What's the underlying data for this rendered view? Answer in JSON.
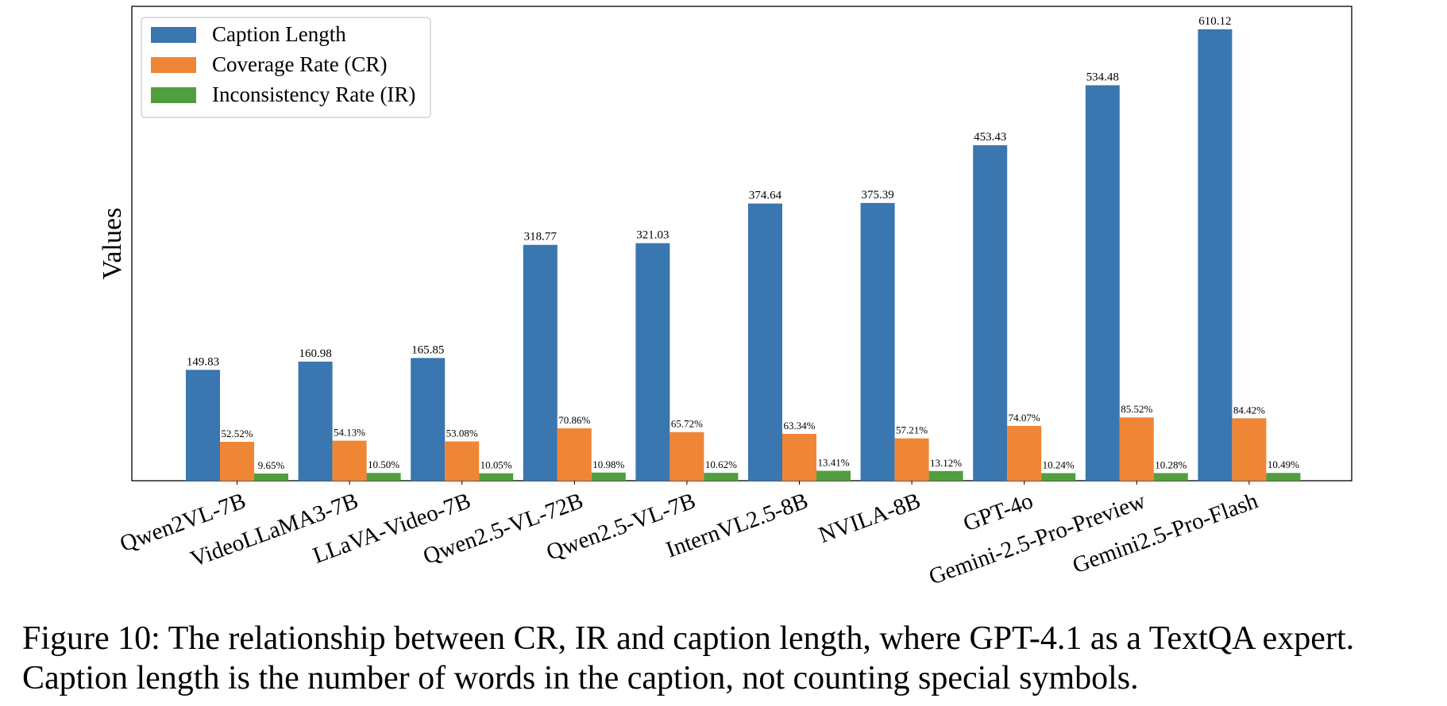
{
  "chart_data": {
    "type": "bar",
    "title": "",
    "xlabel": "",
    "ylabel": "Values",
    "categories": [
      "Qwen2VL-7B",
      "VideoLLaMA3-7B",
      "LLaVA-Video-7B",
      "Qwen2.5-VL-72B",
      "Qwen2.5-VL-7B",
      "InternVL2.5-8B",
      "NVILA-8B",
      "GPT-4o",
      "Gemini-2.5-Pro-Preview",
      "Gemini2.5-Pro-Flash"
    ],
    "series": [
      {
        "name": "Caption Length",
        "color": "#3a76af",
        "values": [
          149.83,
          160.98,
          165.85,
          318.77,
          321.03,
          374.64,
          375.39,
          453.43,
          534.48,
          610.12
        ],
        "labels": [
          "149.83",
          "160.98",
          "165.85",
          "318.77",
          "321.03",
          "374.64",
          "375.39",
          "453.43",
          "534.48",
          "610.12"
        ]
      },
      {
        "name": "Coverage Rate (CR)",
        "color": "#ef8636",
        "values": [
          52.52,
          54.13,
          53.08,
          70.86,
          65.72,
          63.34,
          57.21,
          74.07,
          85.52,
          84.42
        ],
        "labels": [
          "52.52%",
          "54.13%",
          "53.08%",
          "70.86%",
          "65.72%",
          "63.34%",
          "57.21%",
          "74.07%",
          "85.52%",
          "84.42%"
        ]
      },
      {
        "name": "Inconsistency Rate (IR)",
        "color": "#519e3e",
        "values": [
          9.65,
          10.5,
          10.05,
          10.98,
          10.62,
          13.41,
          13.12,
          10.24,
          10.28,
          10.49
        ],
        "labels": [
          "9.65%",
          "10.50%",
          "10.05%",
          "10.98%",
          "10.62%",
          "13.41%",
          "13.12%",
          "10.24%",
          "10.28%",
          "10.49%"
        ]
      }
    ],
    "legend": "top-left",
    "grid": false,
    "yticks": "hidden"
  },
  "caption": {
    "line1": "Figure 10: The relationship between CR, IR and caption length, where GPT-4.1 as a TextQA expert.",
    "line2": "Caption length is the number of words in the caption, not counting special symbols."
  }
}
